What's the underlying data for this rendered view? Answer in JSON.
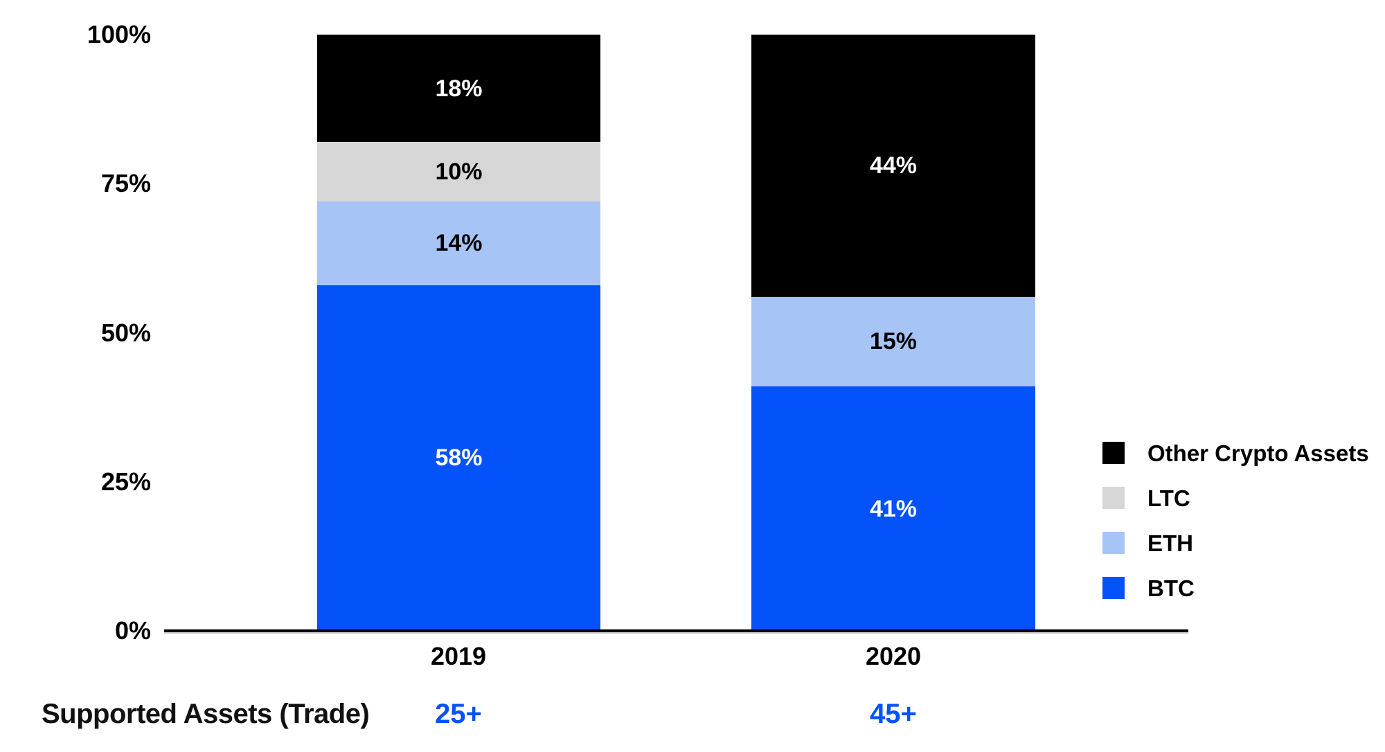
{
  "chart_data": {
    "type": "bar",
    "variant": "stacked-percentage-columns",
    "background": "#FFFFFF",
    "grid": false,
    "categories": [
      "2019",
      "2020"
    ],
    "series": [
      {
        "name": "BTC",
        "color": "#0452FA",
        "label_color": "#FFFFFF",
        "values": [
          58,
          41
        ]
      },
      {
        "name": "ETH",
        "color": "#A7C4F7",
        "label_color": "#000000",
        "values": [
          14,
          15
        ]
      },
      {
        "name": "LTC",
        "color": "#D7D7D7",
        "label_color": "#000000",
        "values": [
          10,
          null
        ]
      },
      {
        "name": "Other Crypto Assets",
        "color": "#000000",
        "label_color": "#FFFFFF",
        "values": [
          18,
          44
        ]
      }
    ],
    "value_suffix": "%",
    "y_axis": {
      "tick_labels": [
        "0%",
        "25%",
        "50%",
        "75%",
        "100%"
      ],
      "min": 0,
      "max": 100
    },
    "x_axis": {
      "labels": [
        "2019",
        "2020"
      ]
    },
    "legend": {
      "position": "right",
      "entries": [
        {
          "label": "Other Crypto Assets",
          "color": "#000000"
        },
        {
          "label": "LTC",
          "color": "#D7D7D7"
        },
        {
          "label": "ETH",
          "color": "#A7C4F7"
        },
        {
          "label": "BTC",
          "color": "#0452FA"
        }
      ]
    },
    "footer": {
      "label": "Supported Assets (Trade)",
      "values": [
        "25+",
        "45+"
      ],
      "value_color": "#0452FA"
    }
  }
}
